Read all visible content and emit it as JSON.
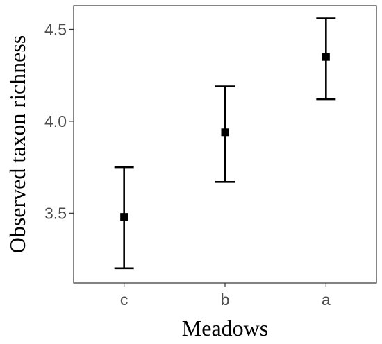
{
  "chart_data": {
    "type": "scatter",
    "title": "",
    "xlabel": "Meadows",
    "ylabel": "Observed taxon richness",
    "categories": [
      "c",
      "b",
      "a"
    ],
    "series": [
      {
        "means": [
          3.48,
          3.94,
          4.35
        ],
        "lower": [
          3.2,
          3.67,
          4.12
        ],
        "upper": [
          3.75,
          4.19,
          4.56
        ]
      }
    ],
    "ylim": [
      3.12,
      4.63
    ],
    "yticks": [
      3.5,
      4.0,
      4.5
    ],
    "ytick_labels": [
      "3.5",
      "4.0",
      "4.5"
    ],
    "grid": false,
    "legend": "none",
    "marker": "square",
    "colors": {
      "mark": "#000000",
      "frame": "#333333",
      "tick_text": "#4d4d4d"
    }
  }
}
